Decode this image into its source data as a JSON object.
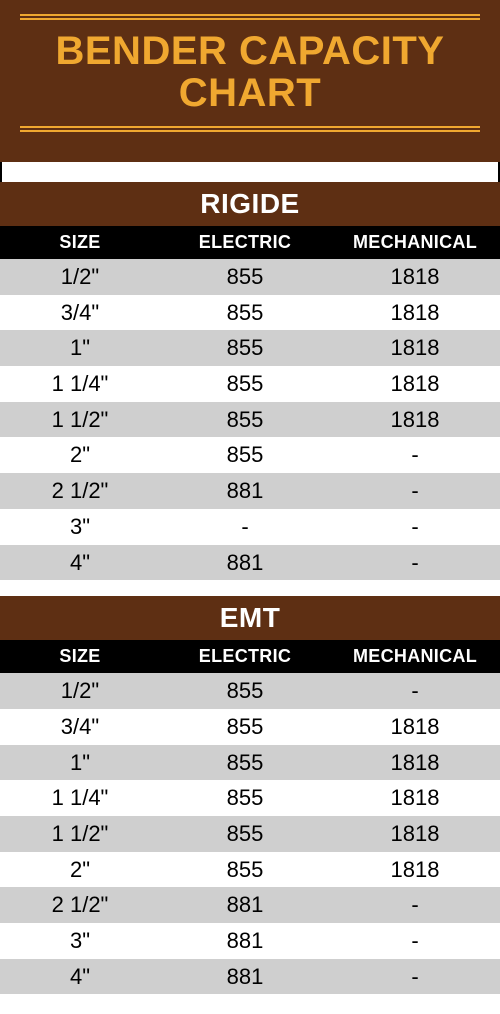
{
  "title": "BENDER CAPACITY CHART",
  "colors": {
    "header_bg": "#5e2f13",
    "accent": "#f0a830",
    "col_header_bg": "#000000",
    "col_header_text": "#ffffff",
    "row_grey": "#cfcfcf",
    "row_white": "#ffffff",
    "text": "#000000"
  },
  "typography": {
    "title_fontsize": 40,
    "section_fontsize": 28,
    "header_fontsize": 18,
    "cell_fontsize": 22,
    "title_weight": 800
  },
  "column_widths_pct": [
    32,
    34,
    34
  ],
  "sections": [
    {
      "label": "RIGIDE",
      "columns": [
        "SIZE",
        "ELECTRIC",
        "MECHANICAL"
      ],
      "rows": [
        {
          "stripe": "grey",
          "cells": [
            "1/2\"",
            "855",
            "1818"
          ]
        },
        {
          "stripe": "white",
          "cells": [
            "3/4\"",
            "855",
            "1818"
          ]
        },
        {
          "stripe": "grey",
          "cells": [
            "1\"",
            "855",
            "1818"
          ]
        },
        {
          "stripe": "white",
          "cells": [
            "1 1/4\"",
            "855",
            "1818"
          ]
        },
        {
          "stripe": "grey",
          "cells": [
            "1 1/2\"",
            "855",
            "1818"
          ]
        },
        {
          "stripe": "white",
          "cells": [
            "2\"",
            "855",
            "-"
          ]
        },
        {
          "stripe": "grey",
          "cells": [
            "2 1/2\"",
            "881",
            "-"
          ]
        },
        {
          "stripe": "white",
          "cells": [
            "3\"",
            "-",
            "-"
          ]
        },
        {
          "stripe": "grey",
          "cells": [
            "4\"",
            "881",
            "-"
          ]
        }
      ]
    },
    {
      "label": "EMT",
      "columns": [
        "SIZE",
        "ELECTRIC",
        "MECHANICAL"
      ],
      "rows": [
        {
          "stripe": "grey",
          "cells": [
            "1/2\"",
            "855",
            "-"
          ]
        },
        {
          "stripe": "white",
          "cells": [
            "3/4\"",
            "855",
            "1818"
          ]
        },
        {
          "stripe": "grey",
          "cells": [
            "1\"",
            "855",
            "1818"
          ]
        },
        {
          "stripe": "white",
          "cells": [
            "1 1/4\"",
            "855",
            "1818"
          ]
        },
        {
          "stripe": "grey",
          "cells": [
            "1 1/2\"",
            "855",
            "1818"
          ]
        },
        {
          "stripe": "white",
          "cells": [
            "2\"",
            "855",
            "1818"
          ]
        },
        {
          "stripe": "grey",
          "cells": [
            "2 1/2\"",
            "881",
            "-"
          ]
        },
        {
          "stripe": "white",
          "cells": [
            "3\"",
            "881",
            "-"
          ]
        },
        {
          "stripe": "grey",
          "cells": [
            "4\"",
            "881",
            "-"
          ]
        }
      ]
    }
  ]
}
